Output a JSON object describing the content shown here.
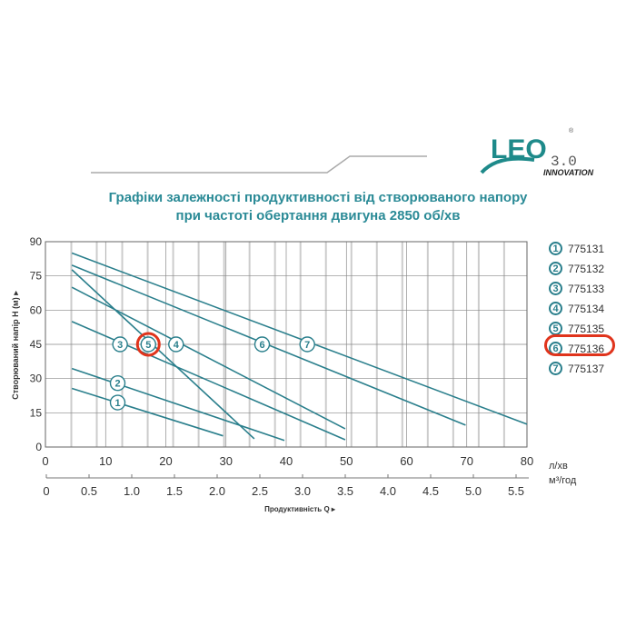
{
  "logo": {
    "brand": "LEO",
    "version": "3.0",
    "tagline": "INNOVATION"
  },
  "title": {
    "line1": "Графіки залежності продуктивності від створюваного напору",
    "line2": "при частоті обертання двигуна 2850 об/хв"
  },
  "colors": {
    "line": "#2a7f8c",
    "title": "#2a8a96",
    "highlight": "#e0341c"
  },
  "chart_data": {
    "type": "line",
    "ylabel": "Створюваний напір Н (м) ▸",
    "xlabel": "Продуктивність Q ▸",
    "x_unit": "л/хв",
    "x2_unit": "м³/год",
    "xlim": [
      0,
      80
    ],
    "ylim": [
      0,
      90
    ],
    "xticks": [
      "0",
      "10",
      "20",
      "30",
      "40",
      "50",
      "60",
      "70",
      "80"
    ],
    "x2ticks": [
      "0",
      "0.5",
      "1.0",
      "1.5",
      "2.0",
      "2.5",
      "3.0",
      "3.5",
      "4.0",
      "4.5",
      "5.0",
      "5.5"
    ],
    "yticks": [
      "0",
      "15",
      "30",
      "45",
      "60",
      "75",
      "90"
    ],
    "grid": true,
    "series": [
      {
        "name": "1",
        "model": "775131",
        "x": [
          4.4,
          29.5
        ],
        "y": [
          25.7,
          4.9
        ],
        "label_at": [
          12,
          19.5
        ]
      },
      {
        "name": "2",
        "model": "775132",
        "x": [
          4.4,
          39.7
        ],
        "y": [
          34.4,
          2.9
        ],
        "label_at": [
          12,
          28
        ]
      },
      {
        "name": "3",
        "model": "775133",
        "x": [
          4.4,
          49.8
        ],
        "y": [
          55,
          3.2
        ],
        "label_at": [
          12.4,
          45
        ]
      },
      {
        "name": "4",
        "model": "775134",
        "x": [
          4.4,
          49.8
        ],
        "y": [
          70,
          8
        ],
        "label_at": [
          21.7,
          45
        ]
      },
      {
        "name": "5",
        "model": "775135",
        "x": [
          4.4,
          34.7
        ],
        "y": [
          77.7,
          3.6
        ],
        "label_at": [
          17.1,
          45
        ],
        "highlighted": true
      },
      {
        "name": "6",
        "model": "775136",
        "x": [
          4.4,
          69.8
        ],
        "y": [
          79.7,
          9.6
        ],
        "label_at": [
          36,
          45
        ]
      },
      {
        "name": "7",
        "model": "775137",
        "x": [
          4.4,
          80
        ],
        "y": [
          85,
          10
        ],
        "label_at": [
          43.5,
          45
        ]
      }
    ]
  }
}
